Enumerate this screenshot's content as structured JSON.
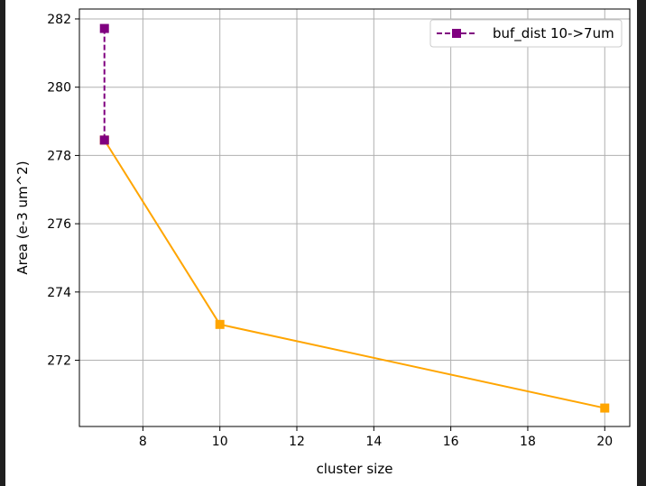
{
  "chart_data": {
    "type": "line",
    "xlabel": "cluster size",
    "ylabel": "Area (e-3 um^2)",
    "xlim": [
      6.35,
      20.65
    ],
    "ylim": [
      270.06,
      282.29
    ],
    "xticks": [
      8,
      10,
      12,
      14,
      16,
      18,
      20
    ],
    "yticks": [
      272,
      274,
      276,
      278,
      280,
      282
    ],
    "grid": true,
    "legend_position": "top-right",
    "series": [
      {
        "name": "",
        "color": "#ffa500",
        "line_style": "solid",
        "marker": "square",
        "x": [
          7,
          10,
          20
        ],
        "y": [
          278.45,
          273.05,
          270.6
        ]
      },
      {
        "name": "buf_dist 10->7um",
        "color": "#800080",
        "line_style": "dashed",
        "marker": "square",
        "x": [
          7,
          7
        ],
        "y": [
          281.72,
          278.45
        ]
      }
    ]
  }
}
